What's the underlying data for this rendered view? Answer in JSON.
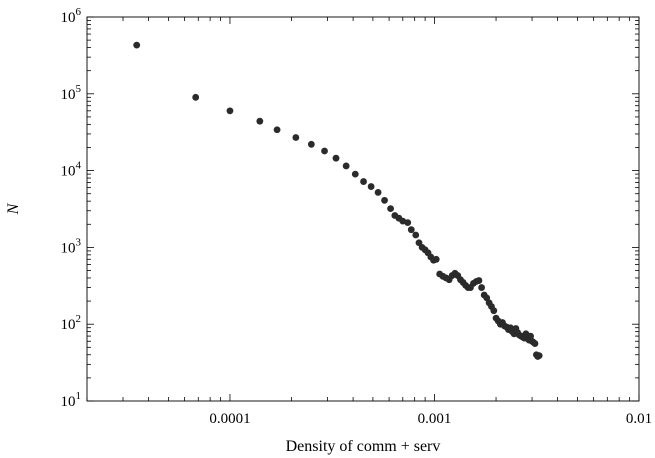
{
  "chart_data": {
    "type": "scatter",
    "title": "",
    "xlabel": "Density  of  comm + serv",
    "ylabel": "N",
    "x_scale": "log",
    "y_scale": "log",
    "xlim": [
      2e-05,
      0.01
    ],
    "ylim": [
      10,
      1000000
    ],
    "grid": false,
    "x_ticks": [
      {
        "value": 0.0001,
        "label": "0.0001"
      },
      {
        "value": 0.001,
        "label": "0.001"
      },
      {
        "value": 0.01,
        "label": "0.01"
      }
    ],
    "y_ticks": [
      {
        "value": 10,
        "base": "10",
        "exp": "1"
      },
      {
        "value": 100,
        "base": "10",
        "exp": "2"
      },
      {
        "value": 1000,
        "base": "10",
        "exp": "3"
      },
      {
        "value": 10000,
        "base": "10",
        "exp": "4"
      },
      {
        "value": 100000,
        "base": "10",
        "exp": "5"
      },
      {
        "value": 1000000,
        "base": "10",
        "exp": "6"
      }
    ],
    "marker_color": "#2b2b2b",
    "points": [
      [
        3.5e-05,
        430000
      ],
      [
        6.8e-05,
        90000
      ],
      [
        0.0001,
        60000
      ],
      [
        0.00014,
        44000
      ],
      [
        0.00017,
        34000
      ],
      [
        0.00021,
        27000
      ],
      [
        0.00025,
        22000
      ],
      [
        0.00029,
        18000
      ],
      [
        0.00033,
        14500
      ],
      [
        0.00037,
        11500
      ],
      [
        0.00041,
        9000
      ],
      [
        0.00045,
        7200
      ],
      [
        0.00049,
        6200
      ],
      [
        0.00053,
        5200
      ],
      [
        0.00057,
        4100
      ],
      [
        0.00061,
        3200
      ],
      [
        0.00064,
        2600
      ],
      [
        0.00067,
        2400
      ],
      [
        0.0007,
        2200
      ],
      [
        0.00074,
        2100
      ],
      [
        0.00077,
        1700
      ],
      [
        0.00081,
        1450
      ],
      [
        0.00084,
        1150
      ],
      [
        0.00087,
        1000
      ],
      [
        0.0009,
        930
      ],
      [
        0.00093,
        850
      ],
      [
        0.00096,
        750
      ],
      [
        0.00099,
        680
      ],
      [
        0.00102,
        700
      ],
      [
        0.00106,
        450
      ],
      [
        0.0011,
        420
      ],
      [
        0.00114,
        400
      ],
      [
        0.00118,
        380
      ],
      [
        0.00122,
        430
      ],
      [
        0.00126,
        460
      ],
      [
        0.0013,
        430
      ],
      [
        0.00134,
        380
      ],
      [
        0.00138,
        350
      ],
      [
        0.00142,
        320
      ],
      [
        0.00146,
        300
      ],
      [
        0.0015,
        300
      ],
      [
        0.00155,
        340
      ],
      [
        0.0016,
        360
      ],
      [
        0.00165,
        370
      ],
      [
        0.0017,
        300
      ],
      [
        0.00175,
        240
      ],
      [
        0.0018,
        220
      ],
      [
        0.00185,
        190
      ],
      [
        0.0019,
        170
      ],
      [
        0.00195,
        150
      ],
      [
        0.002,
        120
      ],
      [
        0.00205,
        110
      ],
      [
        0.0021,
        100
      ],
      [
        0.00215,
        105
      ],
      [
        0.0022,
        95
      ],
      [
        0.00225,
        92
      ],
      [
        0.0023,
        85
      ],
      [
        0.00235,
        90
      ],
      [
        0.0024,
        80
      ],
      [
        0.00245,
        75
      ],
      [
        0.0025,
        88
      ],
      [
        0.00255,
        78
      ],
      [
        0.0026,
        72
      ],
      [
        0.00265,
        70
      ],
      [
        0.0027,
        68
      ],
      [
        0.00275,
        66
      ],
      [
        0.0028,
        75
      ],
      [
        0.00285,
        65
      ],
      [
        0.0029,
        62
      ],
      [
        0.00295,
        70
      ],
      [
        0.003,
        60
      ],
      [
        0.00305,
        58
      ],
      [
        0.0031,
        56
      ],
      [
        0.00315,
        40
      ],
      [
        0.0032,
        38
      ],
      [
        0.00325,
        39
      ]
    ]
  }
}
